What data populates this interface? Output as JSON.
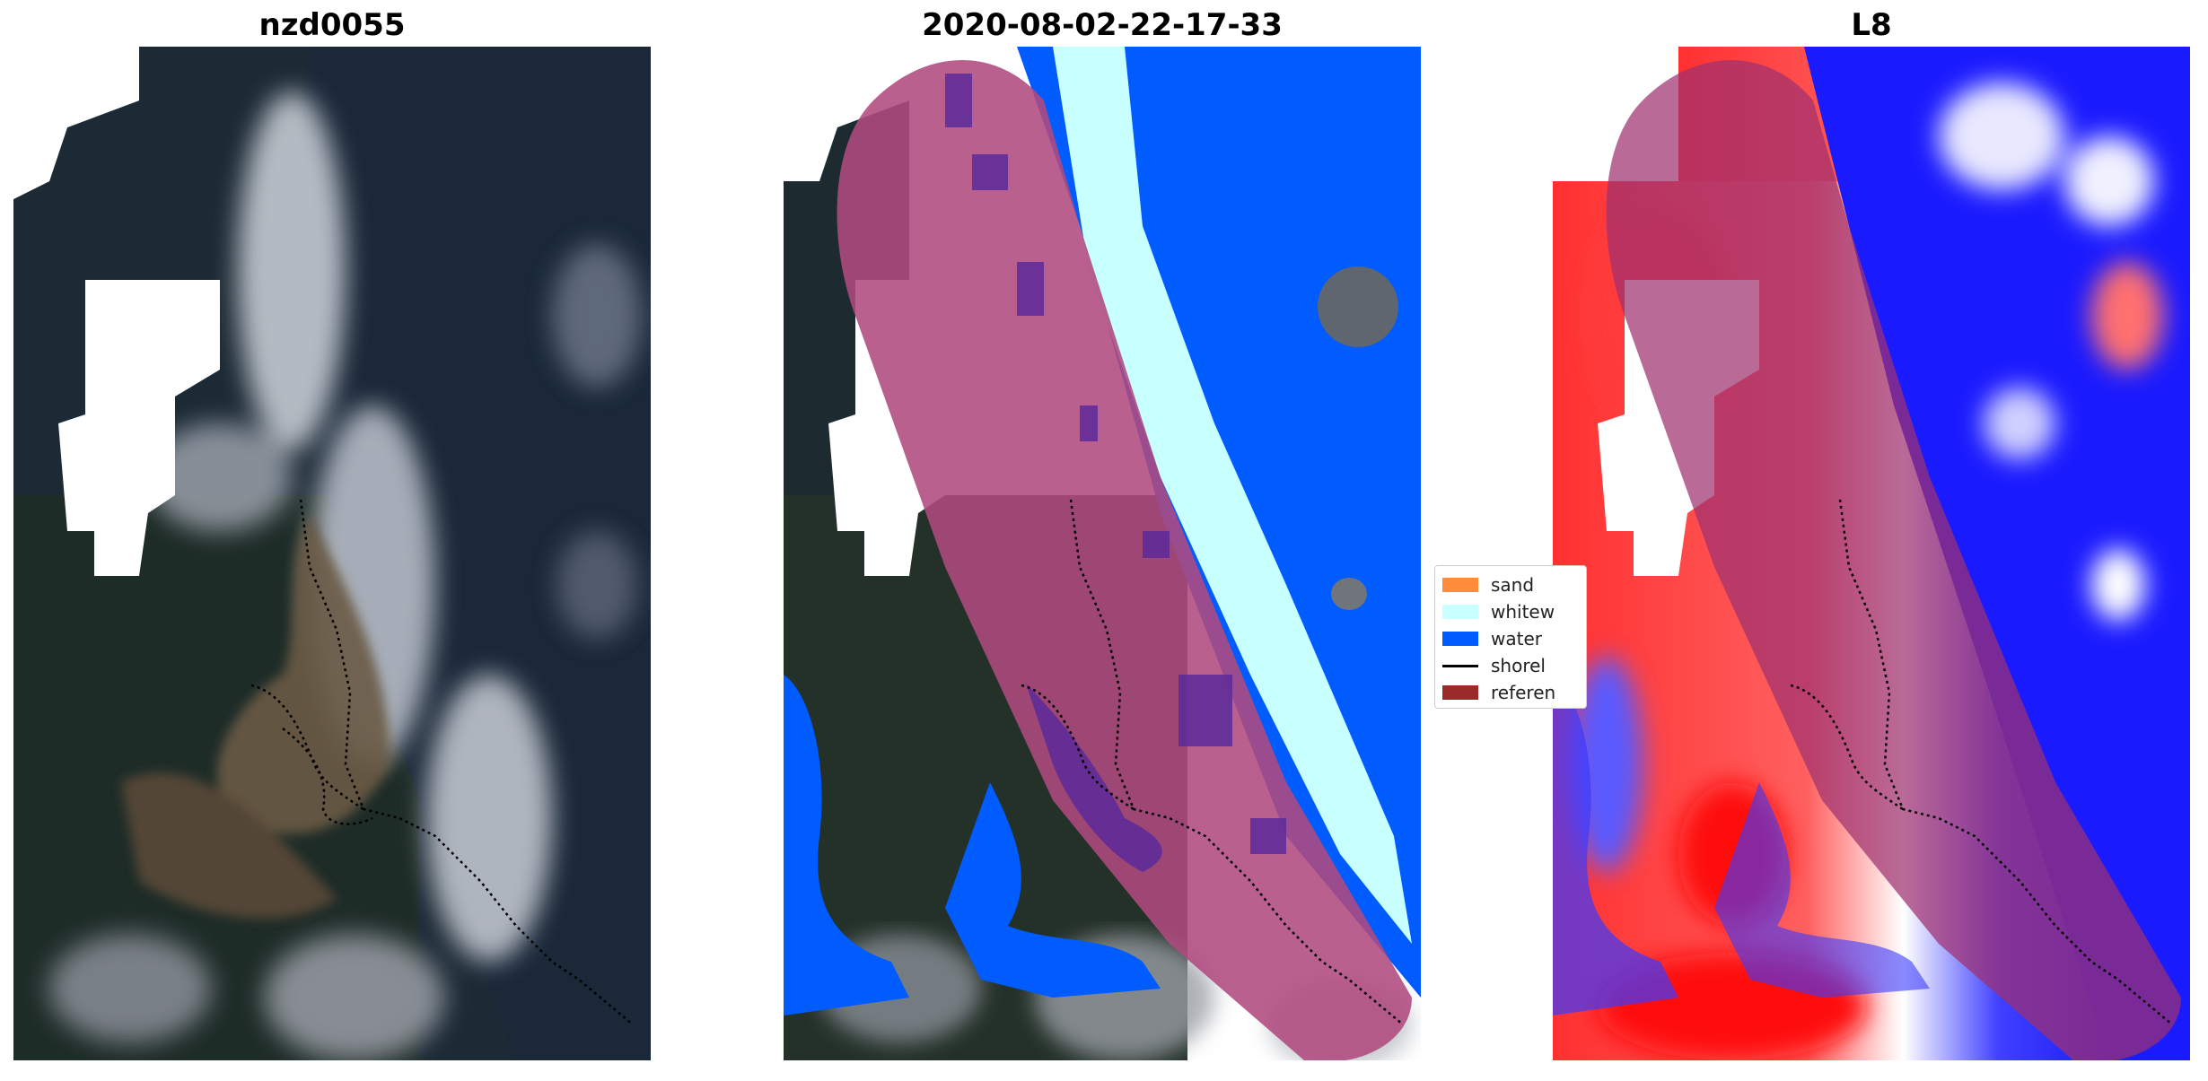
{
  "panels": {
    "left_title": "nzd0055",
    "middle_title": "2020-08-02-22-17-33",
    "right_title": "L8"
  },
  "legend": {
    "items": [
      {
        "label": "sand",
        "color": "#ff8c3a"
      },
      {
        "label": "whitew",
        "color": "#c8ffff"
      },
      {
        "label": "water",
        "color": "#005cff"
      },
      {
        "label": "shorel",
        "color": "#000000"
      },
      {
        "label": "referen",
        "color": "#9b2a2a"
      }
    ]
  },
  "colors": {
    "buffer": "#b04a7e",
    "water_class": "#005cff",
    "whitewater_class": "#c8ffff",
    "index_high": "#ff0000",
    "index_low": "#0000ff"
  }
}
